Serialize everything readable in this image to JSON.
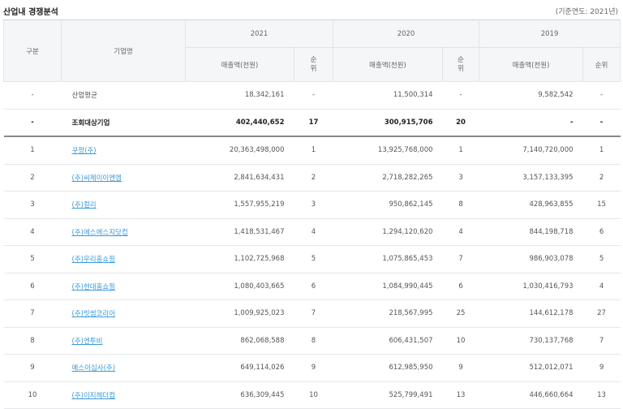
{
  "header": {
    "title": "산업내 경쟁분석",
    "base_year": "(기준연도: 2021년)"
  },
  "table": {
    "group_label": "구분",
    "company_label": "기업명",
    "years": [
      "2021",
      "2020",
      "2019"
    ],
    "subheaders": [
      "매출액(천원)",
      "순위",
      "매출액(천원)",
      "순위",
      "매출액(천원)",
      "순위"
    ],
    "rows": [
      [
        "-",
        "산업평균",
        "18,342,161",
        "-",
        "11,500,314",
        "-",
        "9,582,542",
        "-"
      ],
      [
        "-",
        "조회대상기업",
        "402,440,652",
        "17",
        "300,915,706",
        "20",
        "-",
        "-"
      ],
      [
        "1",
        "쿠팡(주)",
        "20,363,498,000",
        "1",
        "13,925,768,000",
        "1",
        "7,140,720,000",
        "1"
      ],
      [
        "2",
        "(주)씨제이이엔엠",
        "2,841,634,431",
        "2",
        "2,718,282,265",
        "3",
        "3,157,133,395",
        "2"
      ],
      [
        "3",
        "(주)컬리",
        "1,557,955,219",
        "3",
        "950,862,145",
        "8",
        "428,963,855",
        "15"
      ],
      [
        "4",
        "(주)에스에스지닷컴",
        "1,418,531,467",
        "4",
        "1,294,120,620",
        "4",
        "844,198,718",
        "6"
      ],
      [
        "5",
        "(주)우리홈쇼핑",
        "1,102,725,968",
        "5",
        "1,075,865,453",
        "7",
        "986,903,078",
        "5"
      ],
      [
        "6",
        "(주)현대홈쇼핑",
        "1,080,403,665",
        "6",
        "1,084,990,445",
        "6",
        "1,030,416,793",
        "4"
      ],
      [
        "7",
        "(주)빗썸코리아",
        "1,009,925,023",
        "7",
        "218,567,995",
        "25",
        "144,612,178",
        "27"
      ],
      [
        "8",
        "(주)엔투비",
        "862,068,588",
        "8",
        "606,431,507",
        "10",
        "730,137,768",
        "7"
      ],
      [
        "9",
        "예스이십사(주)",
        "649,114,026",
        "9",
        "612,985,950",
        "9",
        "512,012,071",
        "9"
      ],
      [
        "10",
        "(주)이지헤더컴",
        "636,309,445",
        "10",
        "525,799,491",
        "13",
        "446,660,664",
        "13"
      ]
    ]
  }
}
